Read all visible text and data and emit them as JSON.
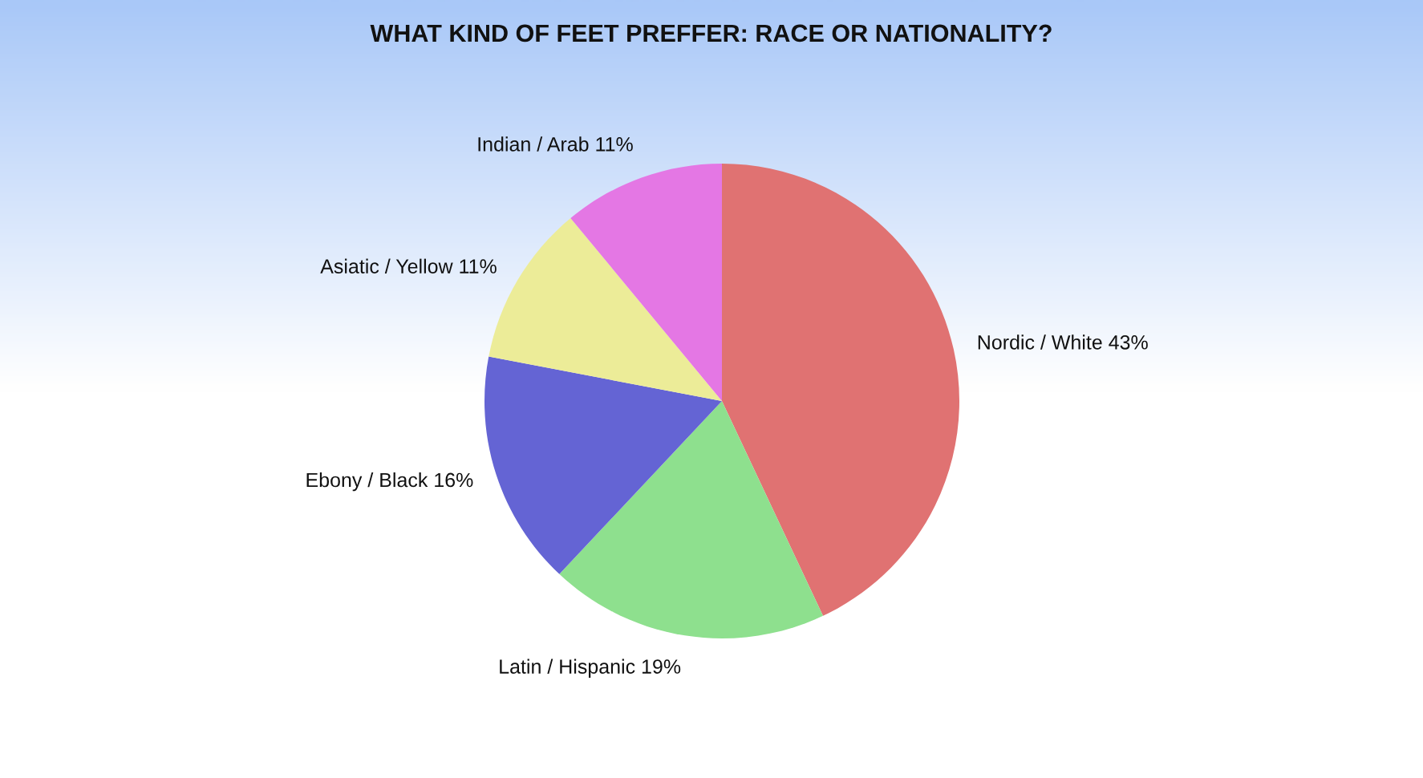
{
  "chart_data": {
    "type": "pie",
    "title": "WHAT KIND OF FEET PREFFER: RACE OR NATIONALITY?",
    "categories": [
      "Nordic / White",
      "Latin / Hispanic",
      "Ebony / Black",
      "Asiatic / Yellow",
      "Indian / Arab"
    ],
    "values": [
      43,
      19,
      16,
      11,
      11
    ],
    "colors": [
      "#e07272",
      "#8ee08e",
      "#6464d4",
      "#ecec98",
      "#e477e4"
    ],
    "value_labels": [
      "43%",
      "19%",
      "16%",
      "11%",
      "11%"
    ]
  }
}
